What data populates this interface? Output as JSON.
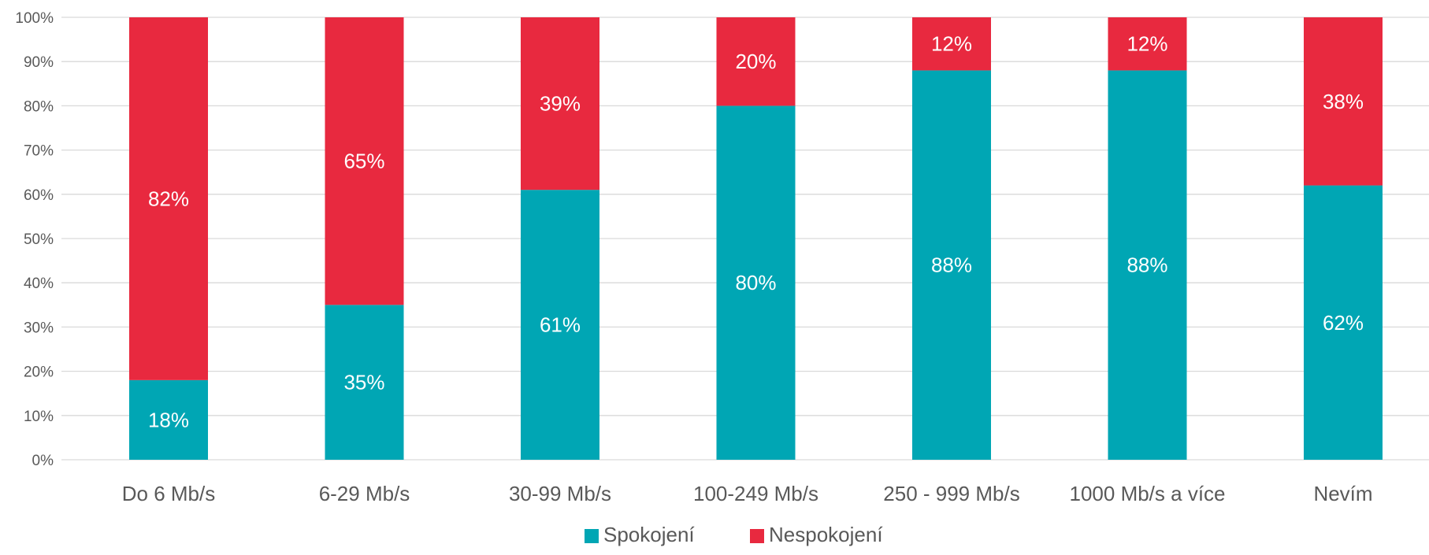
{
  "chart_data": {
    "type": "bar",
    "stacked": "percent",
    "categories": [
      "Do 6 Mb/s",
      "6-29 Mb/s",
      "30-99 Mb/s",
      "100-249 Mb/s",
      "250 - 999 Mb/s",
      "1000 Mb/s a více",
      "Nevím"
    ],
    "series": [
      {
        "name": "Spokojení",
        "color": "#00A6B4",
        "values": [
          18,
          35,
          61,
          80,
          88,
          88,
          62
        ],
        "labels": [
          "18%",
          "35%",
          "61%",
          "80%",
          "88%",
          "88%",
          "62%"
        ]
      },
      {
        "name": "Nespokojení",
        "color": "#E8293F",
        "values": [
          82,
          65,
          39,
          20,
          12,
          12,
          38
        ],
        "labels": [
          "82%",
          "65%",
          "39%",
          "20%",
          "12%",
          "12%",
          "38%"
        ]
      }
    ],
    "title": "",
    "xlabel": "",
    "ylabel": "",
    "ylim": [
      0,
      100
    ],
    "yticks": [
      "0%",
      "10%",
      "20%",
      "30%",
      "40%",
      "50%",
      "60%",
      "70%",
      "80%",
      "90%",
      "100%"
    ],
    "grid": true,
    "legend": "bottom",
    "gridColor": "#d9d9d9",
    "tickLabelColor": "#595959",
    "dataLabelColor": "#ffffff"
  }
}
